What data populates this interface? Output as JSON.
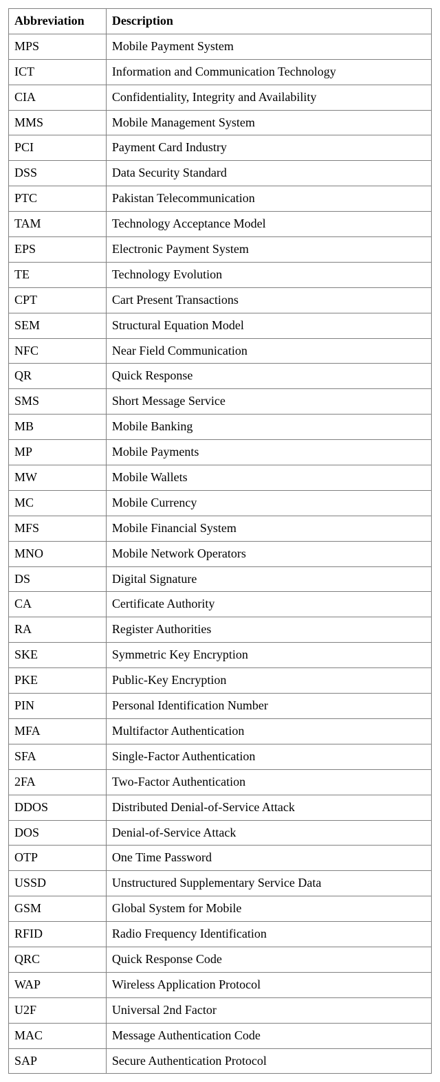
{
  "table": {
    "header": {
      "abbrev": "Abbreviation",
      "desc": "Description"
    },
    "rows": [
      {
        "abbrev": "MPS",
        "desc": "Mobile Payment System"
      },
      {
        "abbrev": "ICT",
        "desc": "Information and Communication Technology"
      },
      {
        "abbrev": "CIA",
        "desc": "Confidentiality, Integrity and Availability"
      },
      {
        "abbrev": "MMS",
        "desc": "Mobile Management System"
      },
      {
        "abbrev": "PCI",
        "desc": "Payment Card Industry"
      },
      {
        "abbrev": "DSS",
        "desc": "Data Security Standard"
      },
      {
        "abbrev": "PTC",
        "desc": "Pakistan Telecommunication"
      },
      {
        "abbrev": "TAM",
        "desc": "Technology Acceptance Model"
      },
      {
        "abbrev": "EPS",
        "desc": "Electronic Payment System"
      },
      {
        "abbrev": "TE",
        "desc": "Technology Evolution"
      },
      {
        "abbrev": "CPT",
        "desc": "Cart Present Transactions"
      },
      {
        "abbrev": "SEM",
        "desc": "Structural Equation Model"
      },
      {
        "abbrev": "NFC",
        "desc": "Near Field Communication"
      },
      {
        "abbrev": "QR",
        "desc": "Quick Response"
      },
      {
        "abbrev": "SMS",
        "desc": "Short Message Service"
      },
      {
        "abbrev": "MB",
        "desc": "Mobile Banking"
      },
      {
        "abbrev": "MP",
        "desc": "Mobile Payments"
      },
      {
        "abbrev": "MW",
        "desc": "Mobile Wallets"
      },
      {
        "abbrev": "MC",
        "desc": "Mobile Currency"
      },
      {
        "abbrev": "MFS",
        "desc": "Mobile Financial System"
      },
      {
        "abbrev": "MNO",
        "desc": "Mobile Network Operators"
      },
      {
        "abbrev": "DS",
        "desc": "Digital Signature"
      },
      {
        "abbrev": "CA",
        "desc": "Certificate Authority"
      },
      {
        "abbrev": "RA",
        "desc": "Register Authorities"
      },
      {
        "abbrev": "SKE",
        "desc": "Symmetric Key Encryption"
      },
      {
        "abbrev": "PKE",
        "desc": "Public-Key Encryption"
      },
      {
        "abbrev": "PIN",
        "desc": "Personal Identification Number"
      },
      {
        "abbrev": "MFA",
        "desc": "Multifactor Authentication"
      },
      {
        "abbrev": "SFA",
        "desc": "Single-Factor Authentication"
      },
      {
        "abbrev": "2FA",
        "desc": "Two-Factor Authentication"
      },
      {
        "abbrev": "DDOS",
        "desc": "Distributed Denial-of-Service Attack"
      },
      {
        "abbrev": "DOS",
        "desc": "Denial-of-Service Attack"
      },
      {
        "abbrev": "OTP",
        "desc": "One Time Password"
      },
      {
        "abbrev": "USSD",
        "desc": "Unstructured Supplementary Service Data"
      },
      {
        "abbrev": "GSM",
        "desc": "Global System for Mobile"
      },
      {
        "abbrev": "RFID",
        "desc": "Radio Frequency Identification"
      },
      {
        "abbrev": "QRC",
        "desc": "Quick Response Code"
      },
      {
        "abbrev": "WAP",
        "desc": "Wireless Application Protocol"
      },
      {
        "abbrev": "U2F",
        "desc": "Universal 2nd Factor"
      },
      {
        "abbrev": "MAC",
        "desc": "Message Authentication Code"
      },
      {
        "abbrev": "SAP",
        "desc": "Secure Authentication Protocol"
      }
    ]
  }
}
